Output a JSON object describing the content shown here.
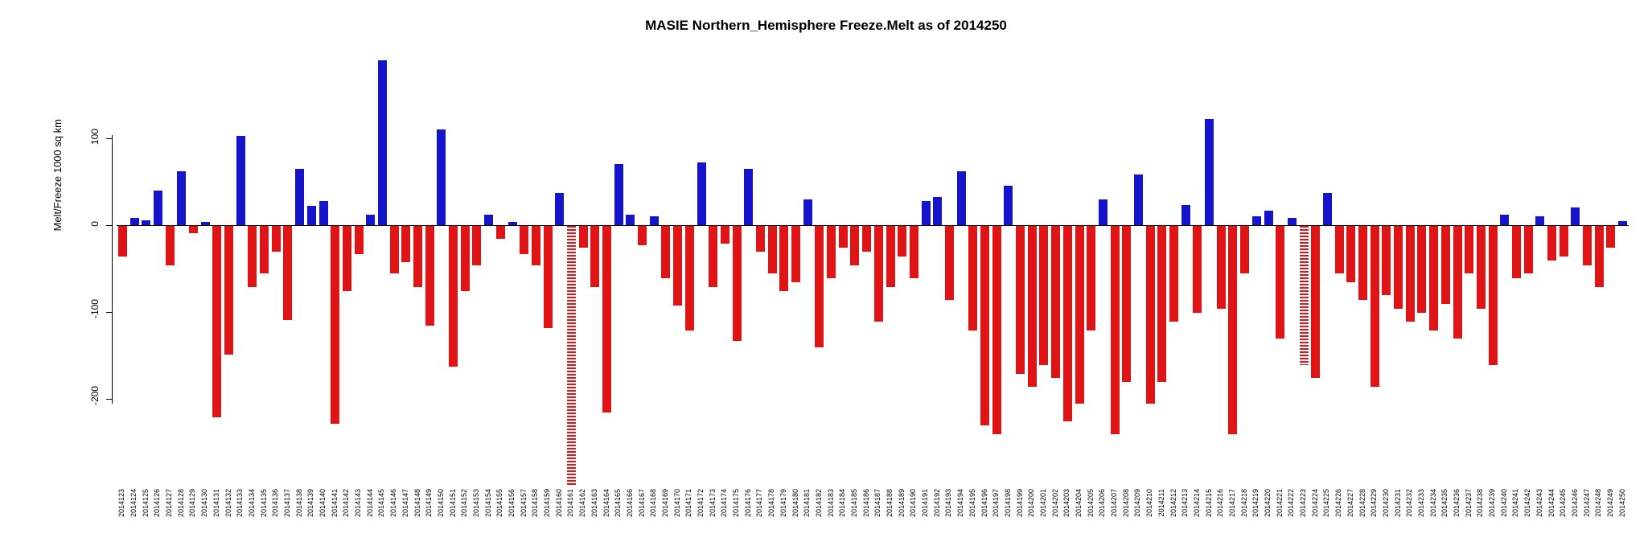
{
  "chart_data": {
    "type": "bar",
    "title": "MASIE Northern_Hemisphere Freeze.Melt as of 2014250",
    "xlabel": "",
    "ylabel": "Melt/Freeze 1000 sq km",
    "ylim": [
      -300,
      200
    ],
    "yticks": [
      100,
      0,
      -100,
      -200
    ],
    "grid": false,
    "legend": false,
    "colors": {
      "positive": "#1414cc",
      "negative": "#e01414"
    },
    "textured_indices": [
      38,
      100
    ],
    "categories": [
      "2014123",
      "2014124",
      "2014125",
      "2014126",
      "2014127",
      "2014128",
      "2014129",
      "2014130",
      "2014131",
      "2014132",
      "2014133",
      "2014134",
      "2014135",
      "2014136",
      "2014137",
      "2014138",
      "2014139",
      "2014140",
      "2014141",
      "2014142",
      "2014143",
      "2014144",
      "2014145",
      "2014146",
      "2014147",
      "2014148",
      "2014149",
      "2014150",
      "2014151",
      "2014152",
      "2014153",
      "2014154",
      "2014155",
      "2014156",
      "2014157",
      "2014158",
      "2014159",
      "2014160",
      "2014161",
      "2014162",
      "2014163",
      "2014164",
      "2014165",
      "2014166",
      "2014167",
      "2014168",
      "2014169",
      "2014170",
      "2014171",
      "2014172",
      "2014173",
      "2014174",
      "2014175",
      "2014176",
      "2014177",
      "2014178",
      "2014179",
      "2014180",
      "2014181",
      "2014182",
      "2014183",
      "2014184",
      "2014185",
      "2014186",
      "2014187",
      "2014188",
      "2014189",
      "2014190",
      "2014191",
      "2014192",
      "2014193",
      "2014194",
      "2014195",
      "2014196",
      "2014197",
      "2014198",
      "2014199",
      "2014200",
      "2014201",
      "2014202",
      "2014203",
      "2014204",
      "2014205",
      "2014206",
      "2014207",
      "2014208",
      "2014209",
      "2014210",
      "2014211",
      "2014212",
      "2014213",
      "2014214",
      "2014215",
      "2014216",
      "2014217",
      "2014218",
      "2014219",
      "2014220",
      "2014221",
      "2014222",
      "2014223",
      "2014224",
      "2014225",
      "2014226",
      "2014227",
      "2014228",
      "2014229",
      "2014230",
      "2014231",
      "2014232",
      "2014233",
      "2014234",
      "2014235",
      "2014236",
      "2014237",
      "2014238",
      "2014239",
      "2014240",
      "2014241",
      "2014242",
      "2014243",
      "2014244",
      "2014245",
      "2014246",
      "2014247",
      "2014248",
      "2014249",
      "2014250"
    ],
    "values": [
      -35,
      8,
      6,
      40,
      -45,
      62,
      -8,
      4,
      -220,
      -148,
      103,
      -70,
      -55,
      -30,
      -108,
      65,
      22,
      28,
      -228,
      -75,
      -32,
      12,
      190,
      -55,
      -42,
      -70,
      -115,
      110,
      -162,
      -75,
      -45,
      12,
      -15,
      4,
      -32,
      -45,
      -118,
      37,
      -298,
      -25,
      -70,
      -215,
      70,
      12,
      -22,
      10,
      -60,
      -92,
      -120,
      72,
      -70,
      -20,
      -132,
      65,
      -30,
      -55,
      -75,
      -65,
      30,
      -140,
      -60,
      -25,
      -45,
      -30,
      -110,
      -70,
      -35,
      -60,
      28,
      32,
      -85,
      62,
      -120,
      -230,
      -240,
      45,
      -170,
      -185,
      -160,
      -175,
      -225,
      -205,
      -120,
      30,
      -240,
      -180,
      58,
      -205,
      -180,
      -110,
      23,
      -100,
      122,
      -95,
      -240,
      -55,
      10,
      17,
      -130,
      8,
      -160,
      -175,
      37,
      -55,
      -65,
      -85,
      -185,
      -80,
      -95,
      -110,
      -100,
      -120,
      -90,
      -130,
      -55,
      -95,
      -160,
      12,
      -60,
      -55,
      10,
      -40,
      -35,
      20,
      -45,
      -70,
      -25,
      5
    ]
  }
}
